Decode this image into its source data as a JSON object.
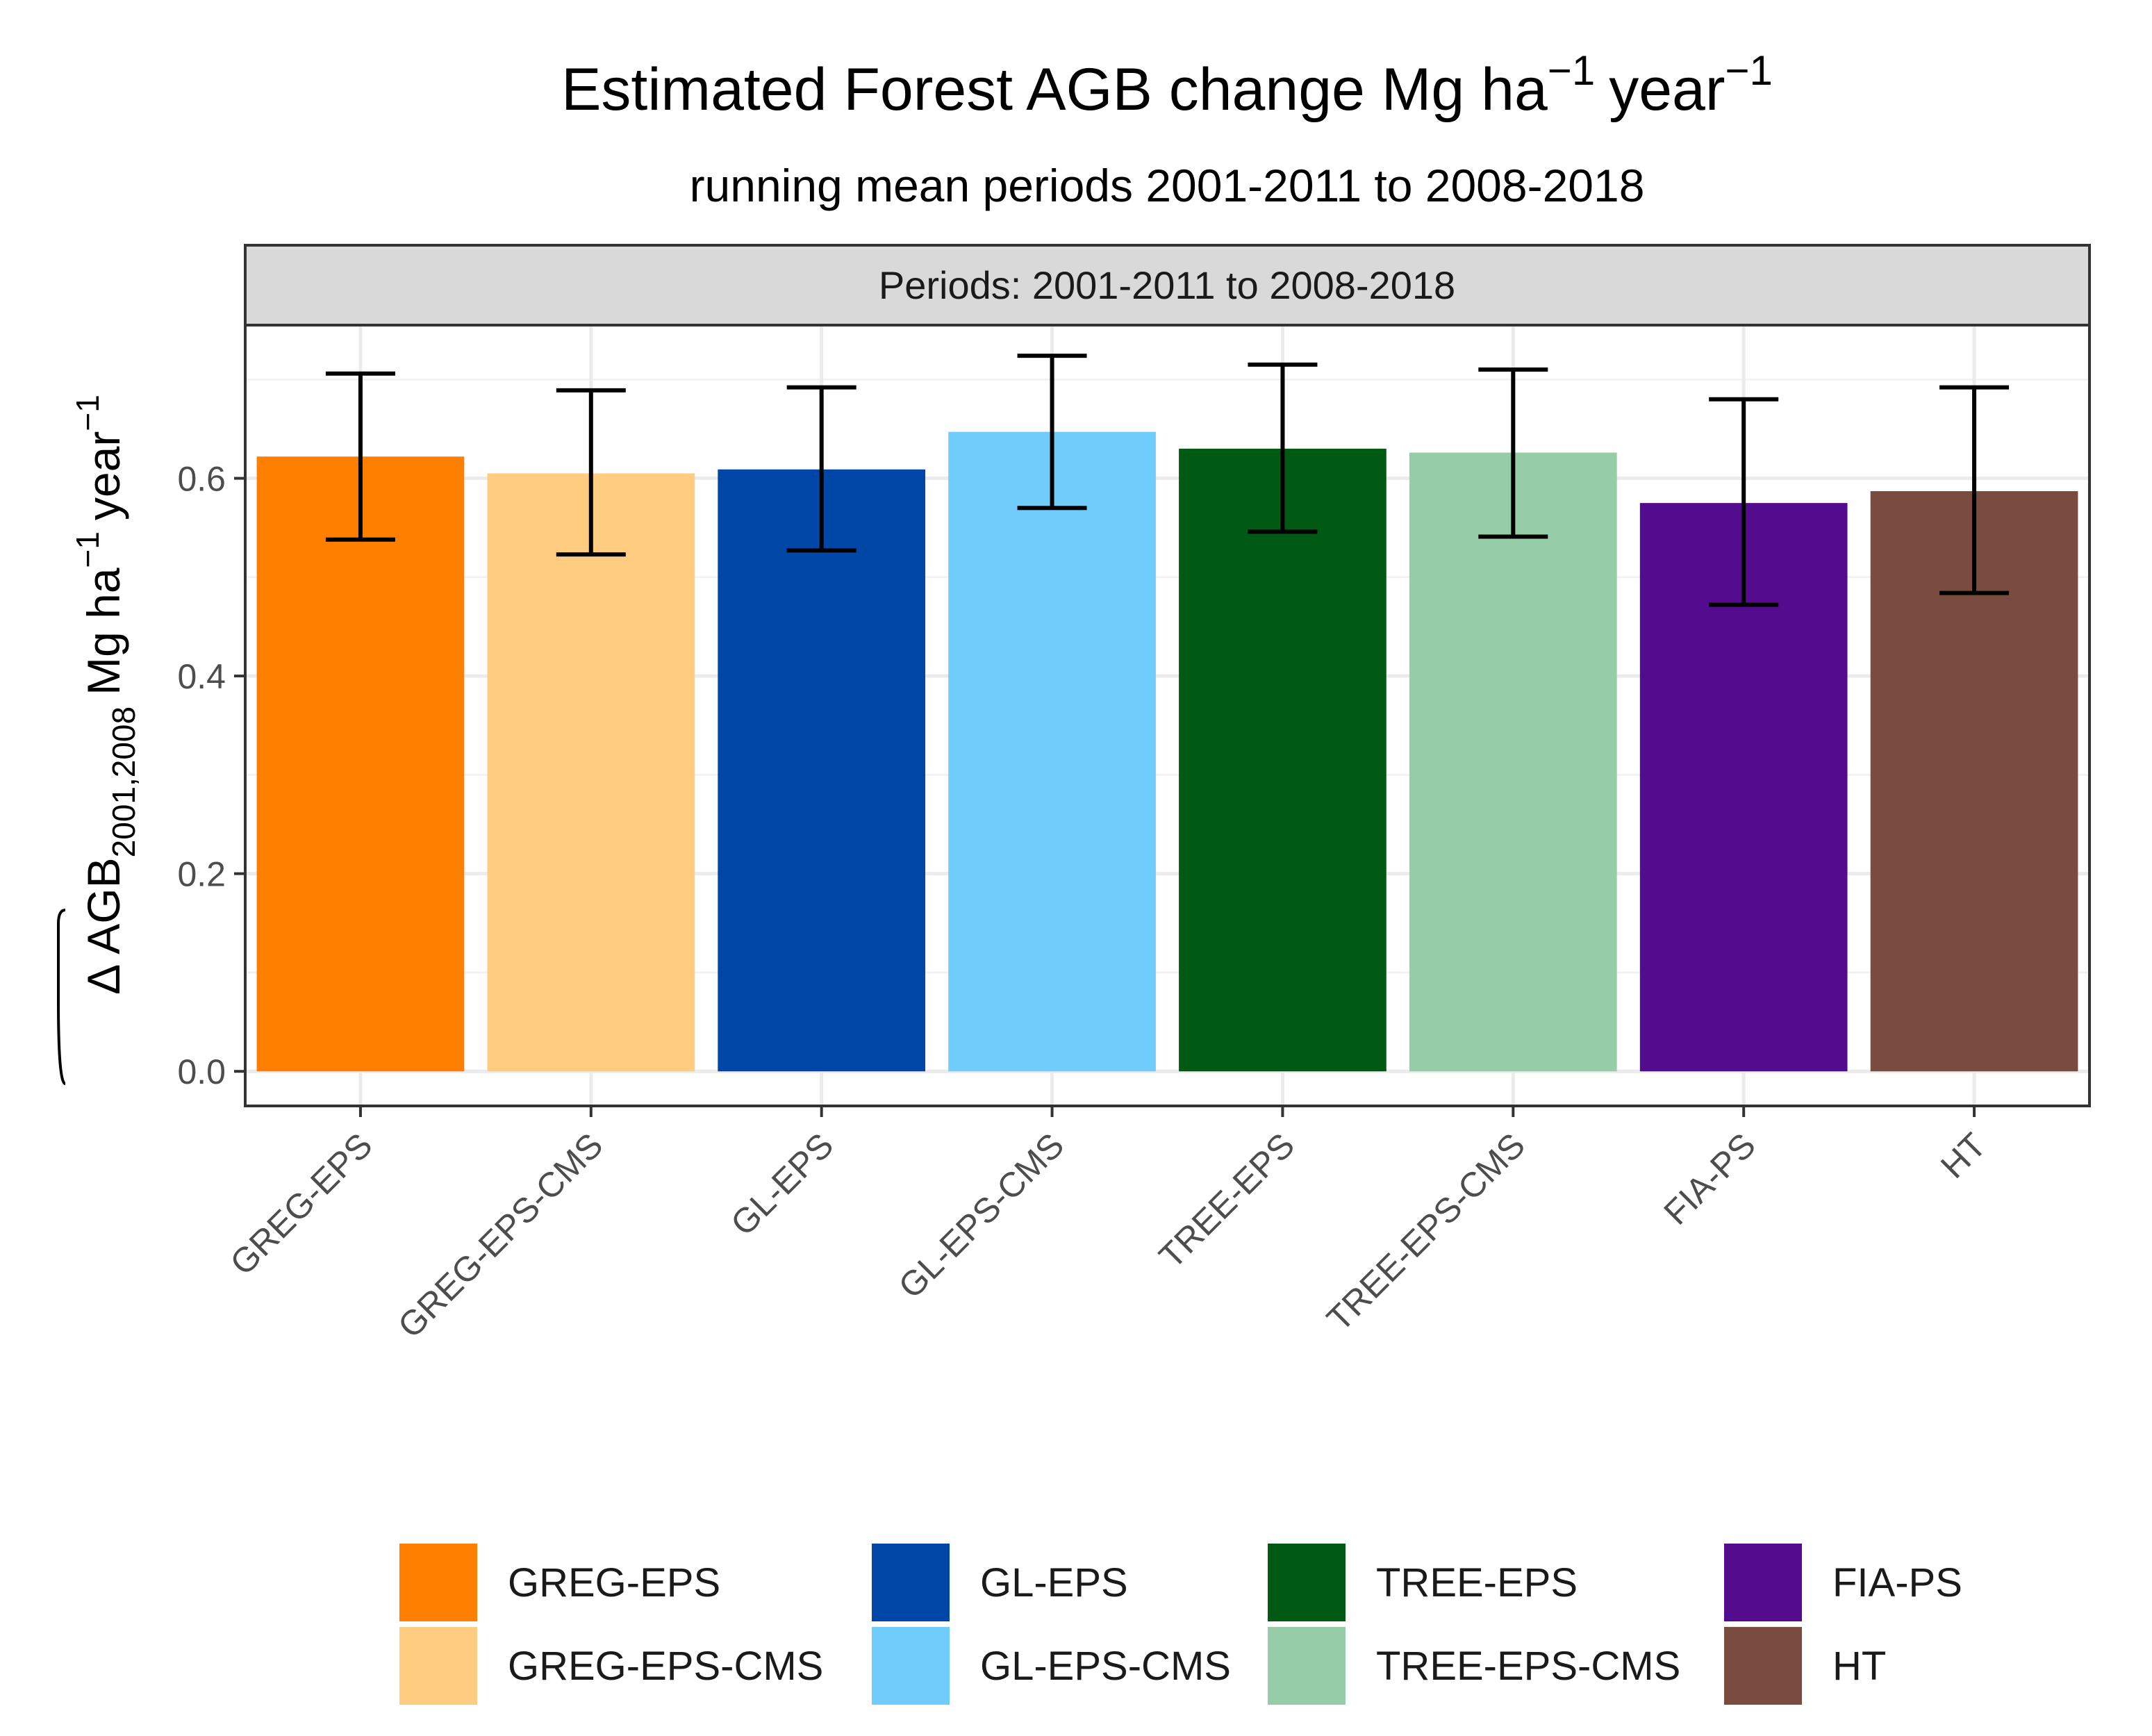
{
  "chart_data": {
    "type": "bar",
    "title": "Estimated Forest AGB change Mg ha",
    "title_sup1": "−1",
    "title_unit2": "year",
    "title_sup2": "−1",
    "subtitle": "running mean periods 2001-2011 to 2008-2018",
    "facet_label": "Periods: 2001-2011 to  2008-2018",
    "ylabel": {
      "prefix": "Δ",
      "main": "AGB",
      "subscript": "2001,2008",
      "unit1": "Mg ha",
      "sup1": "−1",
      "unit2": "year",
      "sup2": "−1"
    },
    "ylim": [
      -0.035,
      0.755
    ],
    "yticks": [
      0.0,
      0.2,
      0.4,
      0.6
    ],
    "ytick_labels": [
      "0.0",
      "0.2",
      "0.4",
      "0.6"
    ],
    "grid": true,
    "categories": [
      "GREG-EPS",
      "GREG-EPS-CMS",
      "GL-EPS",
      "GL-EPS-CMS",
      "TREE-EPS",
      "TREE-EPS-CMS",
      "FIA-PS",
      "HT"
    ],
    "values": [
      0.622,
      0.605,
      0.609,
      0.647,
      0.63,
      0.626,
      0.575,
      0.587
    ],
    "error_low": [
      0.538,
      0.523,
      0.527,
      0.57,
      0.546,
      0.541,
      0.472,
      0.484
    ],
    "error_high": [
      0.706,
      0.689,
      0.692,
      0.724,
      0.715,
      0.71,
      0.68,
      0.692
    ],
    "colors": [
      "#FF7F00",
      "#FFCC80",
      "#0046A6",
      "#70CCFA",
      "#005A14",
      "#96CDA8",
      "#540C8E",
      "#7A4B3F"
    ],
    "legend": {
      "position": "bottom",
      "entries": [
        "GREG-EPS",
        "GREG-EPS-CMS",
        "GL-EPS",
        "GL-EPS-CMS",
        "TREE-EPS",
        "TREE-EPS-CMS",
        "FIA-PS",
        "HT"
      ]
    }
  }
}
